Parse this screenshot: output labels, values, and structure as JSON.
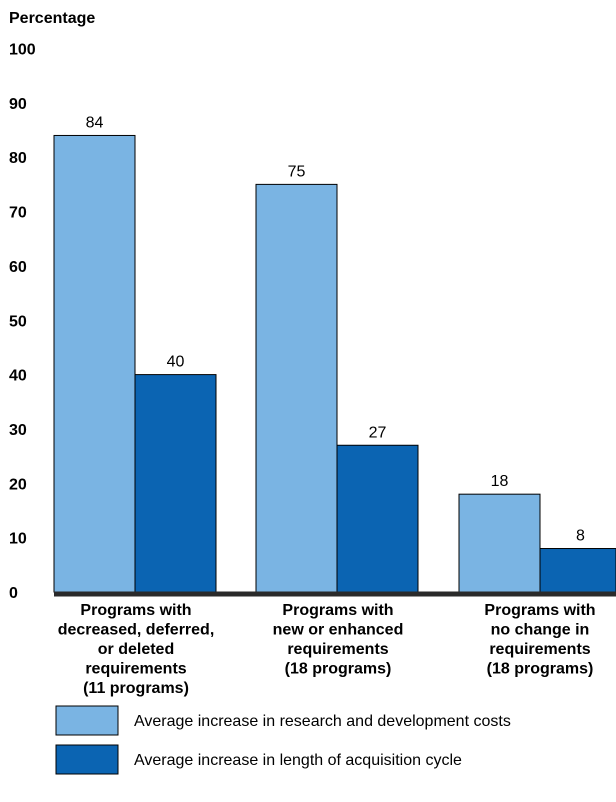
{
  "chart_data": {
    "type": "bar",
    "ylabel": "Percentage",
    "ylim": [
      0,
      100
    ],
    "yticks": [
      0,
      10,
      20,
      30,
      40,
      50,
      60,
      70,
      80,
      90,
      100
    ],
    "categories": [
      [
        "Programs with",
        "decreased, deferred,",
        "or deleted",
        "requirements",
        "(11 programs)"
      ],
      [
        "Programs with",
        "new or enhanced",
        "requirements",
        "(18 programs)"
      ],
      [
        "Programs with",
        "no change in",
        "requirements",
        "(18 programs)"
      ]
    ],
    "series": [
      {
        "name": "Average increase in research and development costs",
        "color": "#7ab4e3",
        "values": [
          84,
          75,
          18
        ]
      },
      {
        "name": "Average increase in length of acquisition cycle",
        "color": "#0b64b2",
        "values": [
          40,
          27,
          8
        ]
      }
    ],
    "grid": false,
    "legend_position": "bottom"
  }
}
